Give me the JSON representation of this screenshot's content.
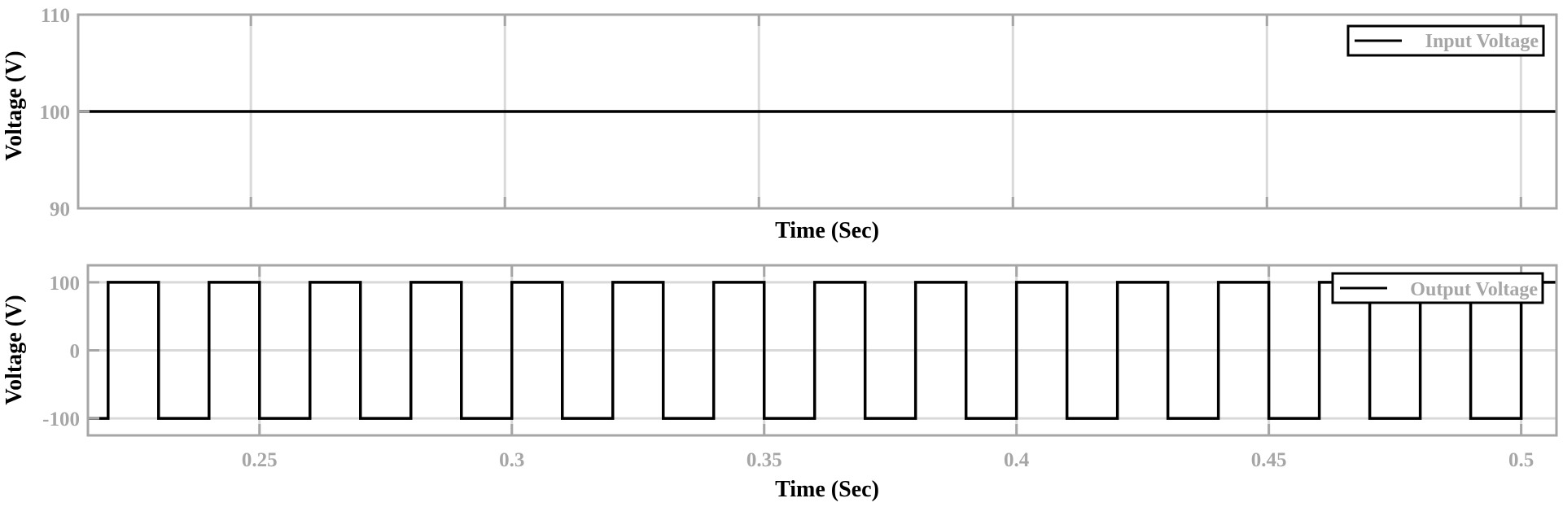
{
  "colors": {
    "background": "#ffffff",
    "frame": "#a6a6a6",
    "grid": "#d9d9d9",
    "line": "#000000",
    "tick_text": "#a6a6a6",
    "label_text": "#000000",
    "legend_border": "#000000",
    "legend_text": "#a6a6a6"
  },
  "chart_data": [
    {
      "type": "line",
      "xlabel": "Time (Sec)",
      "ylabel": "Voltage (V)",
      "xlim": [
        0.216,
        0.507
      ],
      "ylim": [
        90,
        110
      ],
      "xticks": [
        0.25,
        0.3,
        0.35,
        0.4,
        0.45,
        0.5
      ],
      "xtick_labels_shown": false,
      "yticks": [
        90,
        100,
        110
      ],
      "ytick_labels": [
        "90",
        "100",
        "110"
      ],
      "grid": true,
      "legend_position": "top-right",
      "series": [
        {
          "name": "Input Voltage",
          "style": "constant",
          "x": [
            0.216,
            0.507
          ],
          "y": [
            100,
            100
          ]
        }
      ]
    },
    {
      "type": "line",
      "xlabel": "Time (Sec)",
      "ylabel": "Voltage (V)",
      "xlim": [
        0.216,
        0.507
      ],
      "ylim": [
        -125,
        125
      ],
      "xticks": [
        0.25,
        0.3,
        0.35,
        0.4,
        0.45,
        0.5
      ],
      "xtick_labels": [
        "0.25",
        "0.3",
        "0.35",
        "0.4",
        "0.45",
        "0.5"
      ],
      "xtick_labels_shown": true,
      "yticks": [
        -100,
        0,
        100
      ],
      "ytick_labels": [
        "-100",
        "0",
        "100"
      ],
      "grid": true,
      "legend_position": "top-right",
      "series": [
        {
          "name": "Output Voltage",
          "style": "square-wave",
          "high": 100,
          "low": -100,
          "start": 0.22,
          "end": 0.507,
          "period": 0.02,
          "duty": 0.5,
          "first_level": "high"
        }
      ]
    }
  ]
}
